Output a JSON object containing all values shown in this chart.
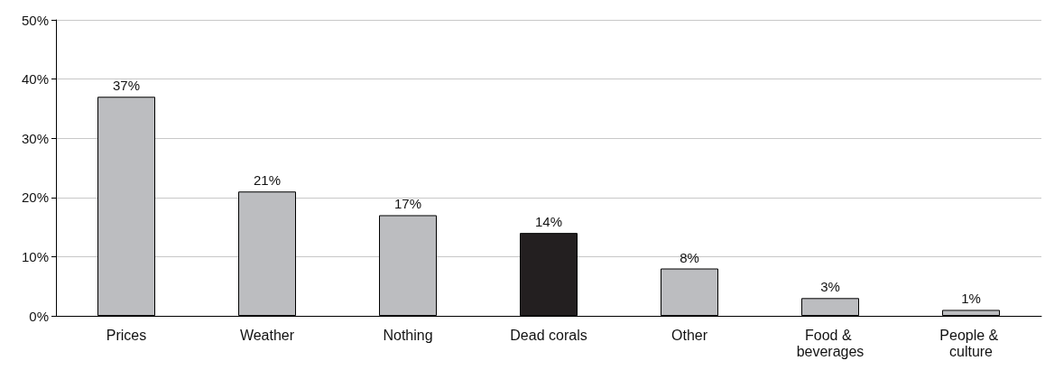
{
  "chart_data": {
    "type": "bar",
    "categories": [
      "Prices",
      "Weather",
      "Nothing",
      "Dead corals",
      "Other",
      "Food & beverages",
      "People & culture"
    ],
    "values": [
      37,
      21,
      17,
      14,
      8,
      3,
      1
    ],
    "colors": [
      "#bcbdc0",
      "#bcbdc0",
      "#bcbdc0",
      "#231f20",
      "#bcbdc0",
      "#bcbdc0",
      "#bcbdc0"
    ],
    "value_labels": [
      "37%",
      "21%",
      "17%",
      "14%",
      "8%",
      "3%",
      "1%"
    ],
    "ylim": [
      0,
      50
    ],
    "yticks": [
      {
        "value": 0,
        "label": "0%"
      },
      {
        "value": 10,
        "label": "10%"
      },
      {
        "value": 20,
        "label": "20%"
      },
      {
        "value": 30,
        "label": "30%"
      },
      {
        "value": 40,
        "label": "40%"
      },
      {
        "value": 50,
        "label": "50%"
      }
    ],
    "grid": "y"
  }
}
